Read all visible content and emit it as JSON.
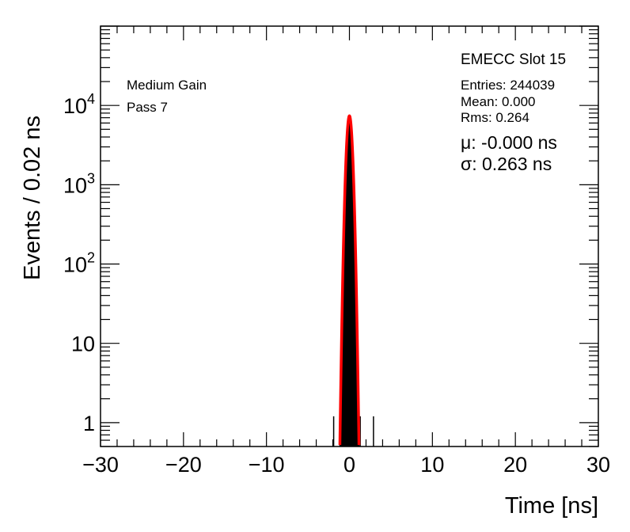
{
  "chart_data": {
    "type": "histogram",
    "title": "",
    "xlabel": "Time [ns]",
    "ylabel": "Events / 0.02 ns",
    "xlim": [
      -30,
      30
    ],
    "ylim": [
      0.5,
      100000
    ],
    "yscale": "log",
    "x_ticks": [
      -30,
      -20,
      -10,
      0,
      10,
      20,
      30
    ],
    "x_tick_labels": [
      "−30",
      "−20",
      "−10",
      "0",
      "10",
      "20",
      "30"
    ],
    "y_ticks": [
      {
        "value": 1,
        "base": "1",
        "exp": ""
      },
      {
        "value": 10,
        "base": "10",
        "exp": ""
      },
      {
        "value": 100,
        "base": "10",
        "exp": "2"
      },
      {
        "value": 1000,
        "base": "10",
        "exp": "3"
      },
      {
        "value": 10000,
        "base": "10",
        "exp": "4"
      }
    ],
    "labels": {
      "gain": "Medium Gain",
      "pass": "Pass 7",
      "slot": "EMECC Slot 15",
      "entries": "Entries: 244039",
      "mean": "Mean: 0.000",
      "rms": "Rms: 0.264",
      "mu": "μ: -0.000 ns",
      "sigma": "σ: 0.263 ns"
    },
    "fit": {
      "function": "gaussian",
      "mean": 0.0,
      "sigma": 0.263,
      "peak": 7400,
      "range": [
        -1.2,
        1.2
      ],
      "color": "#ff0000"
    },
    "outliers": [
      {
        "x": -1.9,
        "y": 1
      },
      {
        "x": 1.3,
        "y": 1
      },
      {
        "x": 2.9,
        "y": 1
      }
    ],
    "series": [
      {
        "histogram_color": "#000000"
      }
    ]
  }
}
